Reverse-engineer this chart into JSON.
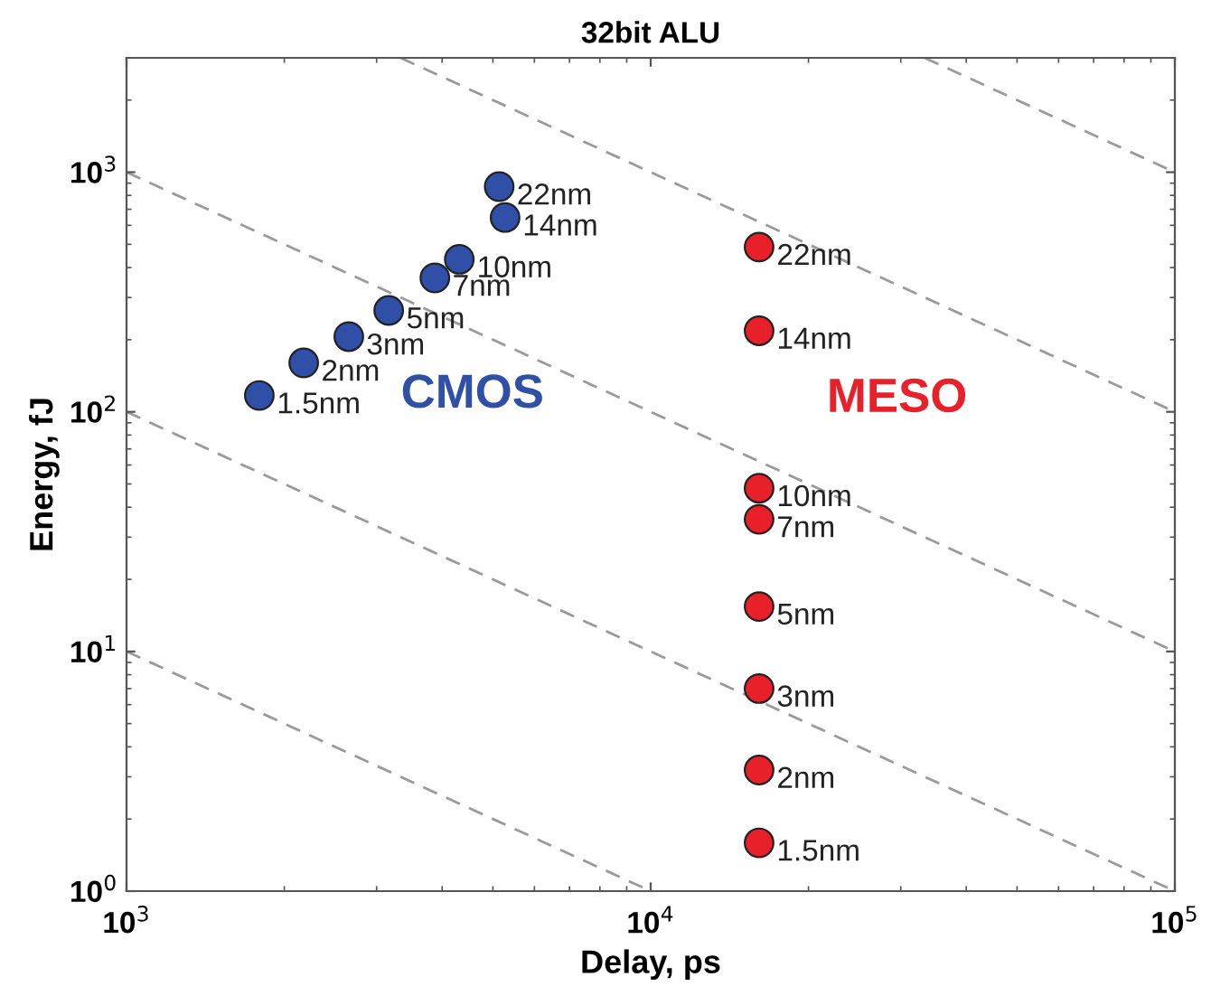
{
  "chart_data": {
    "type": "scatter",
    "title": "32bit ALU",
    "xlabel": "Delay, ps",
    "ylabel": "Energy, fJ",
    "log": "xy",
    "grid": false,
    "legend": false,
    "marker": "circle",
    "xlim": [
      1000,
      100000
    ],
    "ylim": [
      1,
      3000
    ],
    "xticks": [
      {
        "value": 1000,
        "label": "10$^{3}$"
      },
      {
        "value": 10000,
        "label": "10$^{4}$"
      },
      {
        "value": 100000,
        "label": "10$^{5}$"
      }
    ],
    "yticks": [
      {
        "value": 1,
        "label": "10$^{0}$"
      },
      {
        "value": 10,
        "label": "10$^{1}$"
      },
      {
        "value": 100,
        "label": "10$^{2}$"
      },
      {
        "value": 1000,
        "label": "10$^{3}$"
      }
    ],
    "series": [
      {
        "type": "line",
        "line_style": "dashed",
        "marker": "none",
        "color": "#9a9a9a",
        "x": [
          1000,
          10000
        ],
        "values": [
          10,
          1
        ]
      },
      {
        "type": "line",
        "line_style": "dashed",
        "marker": "none",
        "color": "#9a9a9a",
        "x": [
          1000,
          100000
        ],
        "values": [
          100,
          1
        ]
      },
      {
        "type": "line",
        "line_style": "dashed",
        "marker": "none",
        "color": "#9a9a9a",
        "x": [
          1000,
          100000
        ],
        "values": [
          1000,
          10
        ]
      },
      {
        "type": "line",
        "line_style": "dashed",
        "marker": "none",
        "color": "#9a9a9a",
        "x": [
          3333,
          100000
        ],
        "values": [
          3000,
          100
        ]
      },
      {
        "type": "line",
        "line_style": "dashed",
        "marker": "none",
        "color": "#9a9a9a",
        "x": [
          33333,
          100000
        ],
        "values": [
          3000,
          1000
        ]
      },
      {
        "name": "CMOS",
        "color": "#3050a8",
        "x": [
          1792,
          2178,
          2655,
          3164,
          3875,
          4314,
          5275,
          5140
        ],
        "values": [
          117,
          160,
          206,
          265,
          362,
          433,
          647,
          870
        ]
      },
      {
        "name": "MESO",
        "color": "#e8202a",
        "x": [
          16100,
          16100,
          16100,
          16100,
          16100,
          16100,
          16100,
          16100
        ],
        "values": [
          1.59,
          3.2,
          7.0,
          15.4,
          35.6,
          48,
          218,
          487
        ]
      }
    ],
    "annotations": [
      {
        "text": "1.5nm",
        "x": 1792,
        "y": 117
      },
      {
        "text": "2nm",
        "x": 2178,
        "y": 160
      },
      {
        "text": "3nm",
        "x": 2655,
        "y": 206
      },
      {
        "text": "5nm",
        "x": 3164,
        "y": 265
      },
      {
        "text": "7nm",
        "x": 3875,
        "y": 362
      },
      {
        "text": "10nm",
        "x": 4314,
        "y": 433
      },
      {
        "text": "14nm",
        "x": 5275,
        "y": 647
      },
      {
        "text": "22nm",
        "x": 5140,
        "y": 870
      },
      {
        "text": "1.5nm",
        "x": 16100,
        "y": 1.59
      },
      {
        "text": "2nm",
        "x": 16100,
        "y": 3.2
      },
      {
        "text": "3nm",
        "x": 16100,
        "y": 7.0
      },
      {
        "text": "5nm",
        "x": 16100,
        "y": 15.4
      },
      {
        "text": "7nm",
        "x": 16100,
        "y": 35.6
      },
      {
        "text": "10nm",
        "x": 16100,
        "y": 48
      },
      {
        "text": "14nm",
        "x": 16100,
        "y": 218
      },
      {
        "text": "22nm",
        "x": 16100,
        "y": 487
      }
    ]
  }
}
